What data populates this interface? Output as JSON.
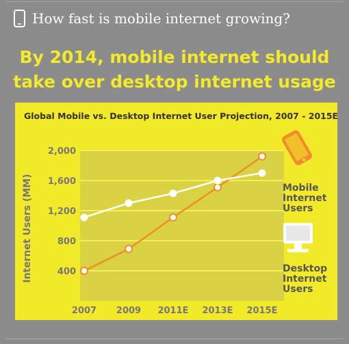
{
  "header": {
    "icon": "phone-icon",
    "text": "How fast is mobile internet growing?"
  },
  "headline": {
    "line1": "By 2014, mobile internet should",
    "line2": "take over desktop internet usage"
  },
  "colors": {
    "background": "#8c8c8c",
    "panel": "#f2e92a",
    "plot_area": "#d9d244",
    "mobile": "#f08c2a",
    "desktop": "#ffffff",
    "headline": "#f2ea2a",
    "phone_icon": "#f08c2a",
    "monitor_icon": "#ffffff"
  },
  "legend": {
    "mobile": {
      "icon": "tablet-icon",
      "lines": [
        "Mobile",
        "Internet",
        "Users"
      ]
    },
    "desktop": {
      "icon": "monitor-icon",
      "lines": [
        "Desktop",
        "Internet",
        "Users"
      ]
    }
  },
  "chart_data": {
    "type": "line",
    "title": "Global Mobile vs. Desktop Internet User Projection, 2007 - 2015E",
    "xlabel": "",
    "ylabel": "Internet Users (MM)",
    "categories": [
      "2007",
      "2009",
      "2011E",
      "2013E",
      "2015E"
    ],
    "yticks": [
      "400",
      "800",
      "1,200",
      "1,600",
      "2,000"
    ],
    "ylim": [
      0,
      2000
    ],
    "grid": true,
    "legend_placement": "right",
    "series": [
      {
        "name": "Mobile Internet Users",
        "color": "#f08c2a",
        "values": [
          400,
          690,
          1110,
          1510,
          1920
        ]
      },
      {
        "name": "Desktop Internet Users",
        "color": "#ffffff",
        "values": [
          1110,
          1300,
          1430,
          1600,
          1700
        ]
      }
    ]
  }
}
